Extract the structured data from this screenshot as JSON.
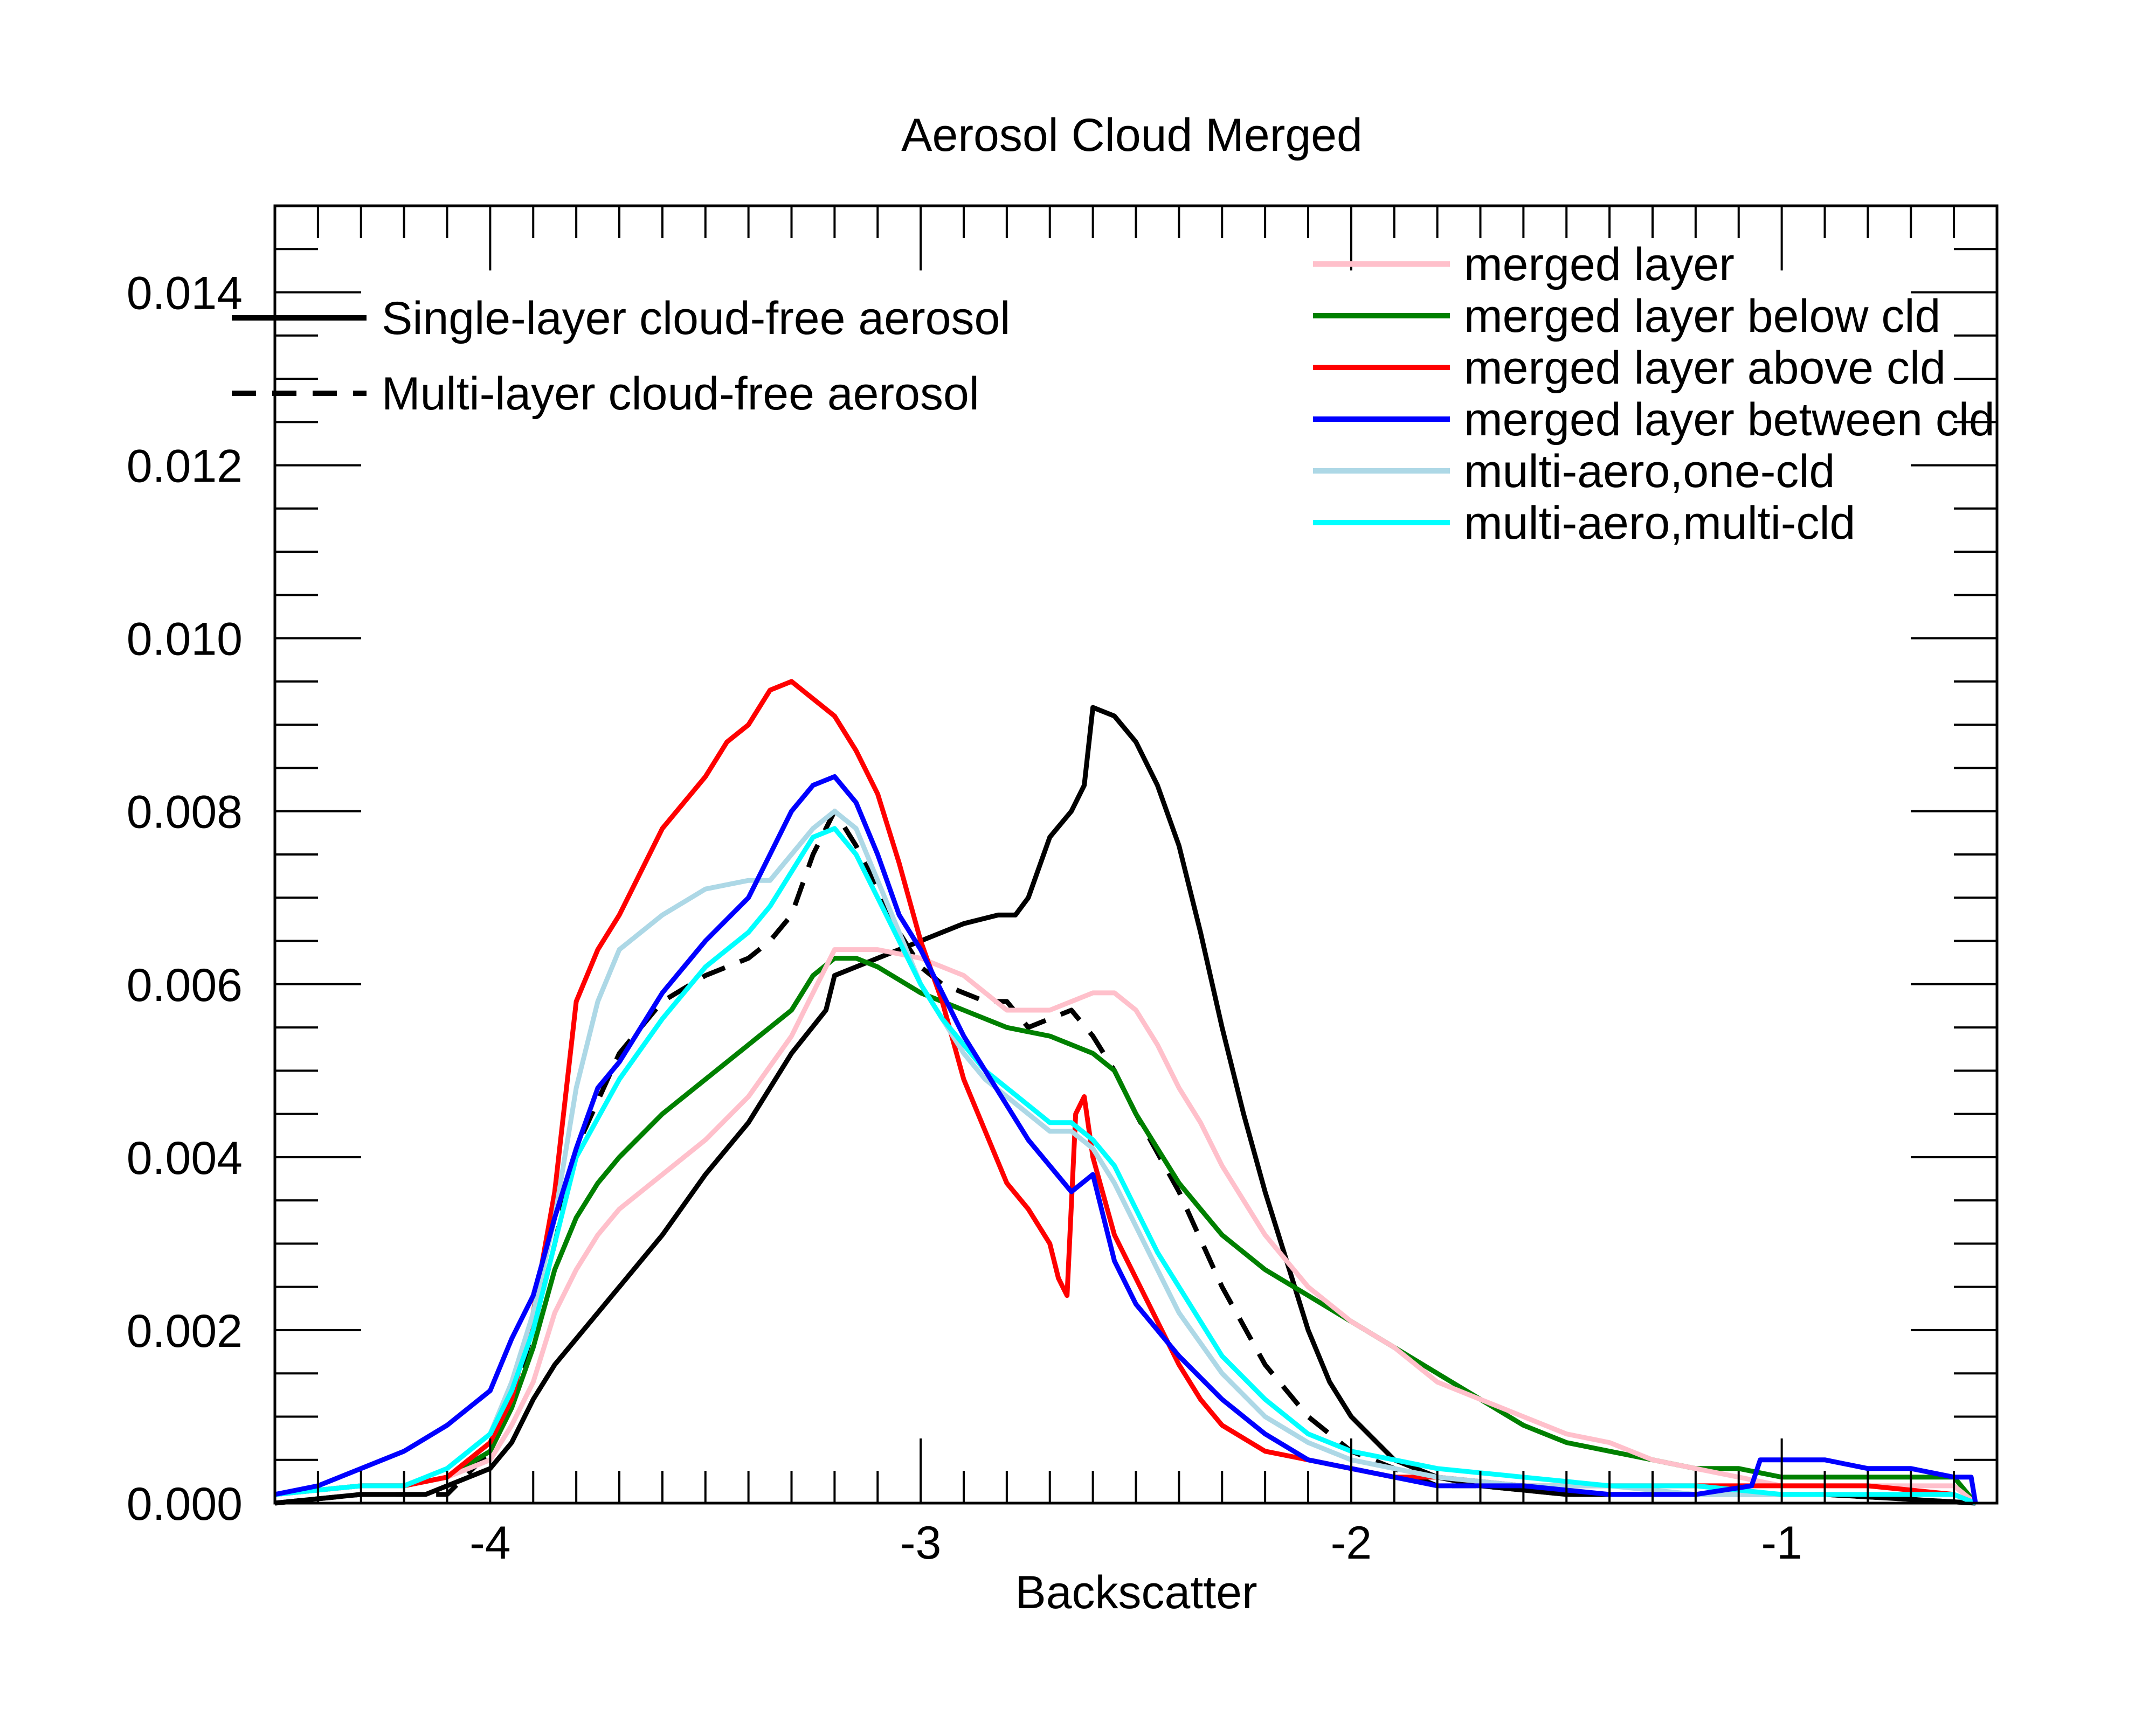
{
  "chart_data": {
    "type": "line",
    "title": "Aerosol Cloud Merged",
    "xlabel": "Backscatter",
    "ylabel": "",
    "xlim": [
      -4.5,
      -0.5
    ],
    "ylim": [
      0,
      0.015
    ],
    "xticks": [
      -4,
      -3,
      -2,
      -1
    ],
    "xtick_labels": [
      "-4",
      "-3",
      "-2",
      "-1"
    ],
    "yticks": [
      0,
      0.002,
      0.004,
      0.006,
      0.008,
      0.01,
      0.012,
      0.014
    ],
    "ytick_labels": [
      "0.000",
      "0.002",
      "0.004",
      "0.006",
      "0.008",
      "0.010",
      "0.012",
      "0.014"
    ],
    "grid": false,
    "legend_left": [
      {
        "name": "Single-layer cloud-free aerosol",
        "style": "solid",
        "color": "#000000"
      },
      {
        "name": "Multi-layer cloud-free aerosol",
        "style": "dashed",
        "color": "#000000"
      }
    ],
    "legend_right": [
      {
        "name": "merged layer",
        "color": "#ffc0cb"
      },
      {
        "name": "merged layer below cld",
        "color": "#008000"
      },
      {
        "name": "merged layer above cld",
        "color": "#ff0000"
      },
      {
        "name": "merged layer between cld",
        "color": "#0000ff"
      },
      {
        "name": "multi-aero,one-cld",
        "color": "#add8e6"
      },
      {
        "name": "multi-aero,multi-cld",
        "color": "#00ffff"
      }
    ],
    "series": [
      {
        "name": "Single-layer cloud-free aerosol",
        "color": "#000000",
        "style": "solid",
        "x": [
          -4.5,
          -4.3,
          -4.15,
          -4.0,
          -3.95,
          -3.9,
          -3.85,
          -3.8,
          -3.7,
          -3.6,
          -3.5,
          -3.4,
          -3.3,
          -3.22,
          -3.2,
          -3.1,
          -3.0,
          -2.9,
          -2.82,
          -2.78,
          -2.75,
          -2.7,
          -2.65,
          -2.62,
          -2.6,
          -2.55,
          -2.5,
          -2.45,
          -2.4,
          -2.35,
          -2.3,
          -2.25,
          -2.2,
          -2.15,
          -2.1,
          -2.05,
          -2.0,
          -1.9,
          -1.8,
          -1.7,
          -1.5,
          -1.2,
          -0.9,
          -0.55
        ],
        "y": [
          0,
          0.0001,
          0.0001,
          0.0004,
          0.0007,
          0.0012,
          0.0016,
          0.0019,
          0.0025,
          0.0031,
          0.0038,
          0.0044,
          0.0052,
          0.0057,
          0.0061,
          0.0063,
          0.0065,
          0.0067,
          0.0068,
          0.0068,
          0.007,
          0.0077,
          0.008,
          0.0083,
          0.0092,
          0.0091,
          0.0088,
          0.0083,
          0.0076,
          0.0066,
          0.0055,
          0.0045,
          0.0036,
          0.0028,
          0.002,
          0.0014,
          0.001,
          0.0005,
          0.0003,
          0.0002,
          0.0001,
          0.0001,
          0.0001,
          0
        ]
      },
      {
        "name": "Multi-layer cloud-free aerosol",
        "color": "#000000",
        "style": "dashed",
        "x": [
          -4.5,
          -4.3,
          -4.1,
          -4.0,
          -3.95,
          -3.9,
          -3.85,
          -3.8,
          -3.7,
          -3.6,
          -3.5,
          -3.4,
          -3.35,
          -3.3,
          -3.25,
          -3.2,
          -3.15,
          -3.1,
          -3.05,
          -3.0,
          -2.95,
          -2.9,
          -2.85,
          -2.8,
          -2.75,
          -2.7,
          -2.65,
          -2.6,
          -2.55,
          -2.5,
          -2.4,
          -2.3,
          -2.2,
          -2.1,
          -2.0,
          -1.9,
          -1.8,
          -1.7,
          -1.5,
          -1.2,
          -0.9,
          -0.55
        ],
        "y": [
          0,
          0.0001,
          0.0001,
          0.0006,
          0.0012,
          0.002,
          0.003,
          0.0041,
          0.0052,
          0.0058,
          0.0061,
          0.0063,
          0.0065,
          0.0068,
          0.0075,
          0.008,
          0.0076,
          0.0071,
          0.0066,
          0.0062,
          0.006,
          0.0059,
          0.0058,
          0.0058,
          0.0055,
          0.0056,
          0.0057,
          0.0054,
          0.005,
          0.0045,
          0.0036,
          0.0025,
          0.0016,
          0.001,
          0.0006,
          0.0004,
          0.0002,
          0.0002,
          0.0001,
          0.0001,
          0.0001,
          0
        ]
      },
      {
        "name": "merged layer",
        "color": "#ffc0cb",
        "style": "solid",
        "x": [
          -4.5,
          -4.3,
          -4.2,
          -4.1,
          -4.0,
          -3.95,
          -3.9,
          -3.85,
          -3.8,
          -3.75,
          -3.7,
          -3.6,
          -3.5,
          -3.4,
          -3.3,
          -3.25,
          -3.2,
          -3.15,
          -3.1,
          -3.0,
          -2.9,
          -2.8,
          -2.7,
          -2.6,
          -2.55,
          -2.5,
          -2.45,
          -2.4,
          -2.35,
          -2.3,
          -2.2,
          -2.1,
          -2.0,
          -1.9,
          -1.8,
          -1.7,
          -1.6,
          -1.5,
          -1.4,
          -1.3,
          -1.2,
          -1.1,
          -1.0,
          -0.9,
          -0.8,
          -0.7,
          -0.6,
          -0.55
        ],
        "y": [
          0.0001,
          0.0002,
          0.0002,
          0.0003,
          0.0005,
          0.0009,
          0.0014,
          0.0022,
          0.0027,
          0.0031,
          0.0034,
          0.0038,
          0.0042,
          0.0047,
          0.0054,
          0.0059,
          0.0064,
          0.0064,
          0.0064,
          0.0063,
          0.0061,
          0.0057,
          0.0057,
          0.0059,
          0.0059,
          0.0057,
          0.0053,
          0.0048,
          0.0044,
          0.0039,
          0.0031,
          0.0025,
          0.0021,
          0.0018,
          0.0014,
          0.0012,
          0.001,
          0.0008,
          0.0007,
          0.0005,
          0.0004,
          0.0003,
          0.0002,
          0.0002,
          0.0002,
          0.0002,
          0.0002,
          0
        ]
      },
      {
        "name": "merged layer below cld",
        "color": "#008000",
        "style": "solid",
        "x": [
          -4.5,
          -4.3,
          -4.2,
          -4.1,
          -4.0,
          -3.95,
          -3.9,
          -3.85,
          -3.8,
          -3.75,
          -3.7,
          -3.6,
          -3.5,
          -3.4,
          -3.3,
          -3.25,
          -3.2,
          -3.15,
          -3.1,
          -3.0,
          -2.9,
          -2.8,
          -2.7,
          -2.6,
          -2.55,
          -2.5,
          -2.45,
          -2.4,
          -2.35,
          -2.3,
          -2.2,
          -2.1,
          -2.0,
          -1.9,
          -1.8,
          -1.7,
          -1.6,
          -1.5,
          -1.4,
          -1.3,
          -1.2,
          -1.1,
          -1.0,
          -0.9,
          -0.8,
          -0.7,
          -0.6,
          -0.55
        ],
        "y": [
          0.0001,
          0.0002,
          0.0002,
          0.0003,
          0.0006,
          0.0011,
          0.0018,
          0.0027,
          0.0033,
          0.0037,
          0.004,
          0.0045,
          0.0049,
          0.0053,
          0.0057,
          0.0061,
          0.0063,
          0.0063,
          0.0062,
          0.0059,
          0.0057,
          0.0055,
          0.0054,
          0.0052,
          0.005,
          0.0045,
          0.0041,
          0.0037,
          0.0034,
          0.0031,
          0.0027,
          0.0024,
          0.0021,
          0.0018,
          0.0015,
          0.0012,
          0.0009,
          0.0007,
          0.0006,
          0.0005,
          0.0004,
          0.0004,
          0.0003,
          0.0003,
          0.0003,
          0.0003,
          0.0003,
          0
        ]
      },
      {
        "name": "merged layer above cld",
        "color": "#ff0000",
        "style": "solid",
        "x": [
          -4.5,
          -4.3,
          -4.2,
          -4.1,
          -4.0,
          -3.95,
          -3.9,
          -3.85,
          -3.8,
          -3.75,
          -3.7,
          -3.6,
          -3.5,
          -3.45,
          -3.4,
          -3.35,
          -3.3,
          -3.25,
          -3.2,
          -3.15,
          -3.1,
          -3.05,
          -3.0,
          -2.95,
          -2.9,
          -2.85,
          -2.8,
          -2.75,
          -2.7,
          -2.68,
          -2.66,
          -2.64,
          -2.62,
          -2.6,
          -2.55,
          -2.5,
          -2.45,
          -2.4,
          -2.35,
          -2.3,
          -2.2,
          -2.1,
          -2.0,
          -1.9,
          -1.8,
          -1.6,
          -1.4,
          -1.2,
          -1.0,
          -0.8,
          -0.6,
          -0.55
        ],
        "y": [
          0.0001,
          0.0002,
          0.0002,
          0.0003,
          0.0007,
          0.0012,
          0.0022,
          0.0036,
          0.0058,
          0.0064,
          0.0068,
          0.0078,
          0.0084,
          0.0088,
          0.009,
          0.0094,
          0.0095,
          0.0093,
          0.0091,
          0.0087,
          0.0082,
          0.0074,
          0.0065,
          0.0058,
          0.0049,
          0.0043,
          0.0037,
          0.0034,
          0.003,
          0.0026,
          0.0024,
          0.0045,
          0.0047,
          0.004,
          0.0031,
          0.0026,
          0.0021,
          0.0016,
          0.0012,
          0.0009,
          0.0006,
          0.0005,
          0.0004,
          0.0003,
          0.0003,
          0.0002,
          0.0002,
          0.0002,
          0.0002,
          0.0002,
          0.0001,
          0
        ]
      },
      {
        "name": "merged layer between cld",
        "color": "#0000ff",
        "style": "solid",
        "x": [
          -4.5,
          -4.4,
          -4.3,
          -4.2,
          -4.1,
          -4.0,
          -3.95,
          -3.9,
          -3.85,
          -3.8,
          -3.75,
          -3.7,
          -3.6,
          -3.5,
          -3.4,
          -3.35,
          -3.3,
          -3.25,
          -3.2,
          -3.15,
          -3.1,
          -3.05,
          -3.0,
          -2.95,
          -2.9,
          -2.85,
          -2.8,
          -2.75,
          -2.7,
          -2.65,
          -2.6,
          -2.55,
          -2.5,
          -2.45,
          -2.4,
          -2.3,
          -2.2,
          -2.1,
          -2.0,
          -1.9,
          -1.8,
          -1.6,
          -1.4,
          -1.2,
          -1.07,
          -1.05,
          -1.0,
          -0.9,
          -0.8,
          -0.7,
          -0.6,
          -0.56,
          -0.55
        ],
        "y": [
          0.0001,
          0.0002,
          0.0004,
          0.0006,
          0.0009,
          0.0013,
          0.0019,
          0.0024,
          0.0033,
          0.0041,
          0.0048,
          0.0051,
          0.0059,
          0.0065,
          0.007,
          0.0075,
          0.008,
          0.0083,
          0.0084,
          0.0081,
          0.0075,
          0.0068,
          0.0064,
          0.0059,
          0.0054,
          0.005,
          0.0046,
          0.0042,
          0.0039,
          0.0036,
          0.0038,
          0.0028,
          0.0023,
          0.002,
          0.0017,
          0.0012,
          0.0008,
          0.0005,
          0.0004,
          0.0003,
          0.0002,
          0.0002,
          0.0001,
          0.0001,
          0.0002,
          0.0005,
          0.0005,
          0.0005,
          0.0004,
          0.0004,
          0.0003,
          0.0003,
          0
        ]
      },
      {
        "name": "multi-aero,one-cld",
        "color": "#add8e6",
        "style": "solid",
        "x": [
          -4.5,
          -4.3,
          -4.2,
          -4.1,
          -4.0,
          -3.95,
          -3.9,
          -3.85,
          -3.8,
          -3.75,
          -3.7,
          -3.6,
          -3.5,
          -3.4,
          -3.35,
          -3.3,
          -3.25,
          -3.2,
          -3.15,
          -3.1,
          -3.05,
          -3.0,
          -2.95,
          -2.9,
          -2.85,
          -2.8,
          -2.75,
          -2.7,
          -2.65,
          -2.6,
          -2.55,
          -2.5,
          -2.45,
          -2.4,
          -2.3,
          -2.2,
          -2.1,
          -2.0,
          -1.9,
          -1.8,
          -1.6,
          -1.4,
          -1.2,
          -1.0,
          -0.8,
          -0.6,
          -0.55
        ],
        "y": [
          0.0001,
          0.0002,
          0.0002,
          0.0004,
          0.0008,
          0.0014,
          0.0022,
          0.0033,
          0.0048,
          0.0058,
          0.0064,
          0.0068,
          0.0071,
          0.0072,
          0.0072,
          0.0075,
          0.0078,
          0.008,
          0.0078,
          0.0072,
          0.0066,
          0.006,
          0.0056,
          0.0052,
          0.0049,
          0.0047,
          0.0045,
          0.0043,
          0.0043,
          0.0041,
          0.0037,
          0.0032,
          0.0027,
          0.0022,
          0.0015,
          0.001,
          0.0007,
          0.0005,
          0.0004,
          0.0003,
          0.0002,
          0.0002,
          0.0001,
          0.0001,
          0.0001,
          0.0001,
          0
        ]
      },
      {
        "name": "multi-aero,multi-cld",
        "color": "#00ffff",
        "style": "solid",
        "x": [
          -4.5,
          -4.3,
          -4.2,
          -4.1,
          -4.0,
          -3.95,
          -3.9,
          -3.85,
          -3.8,
          -3.7,
          -3.6,
          -3.5,
          -3.4,
          -3.35,
          -3.3,
          -3.25,
          -3.2,
          -3.15,
          -3.1,
          -3.05,
          -3.0,
          -2.95,
          -2.9,
          -2.85,
          -2.8,
          -2.75,
          -2.7,
          -2.65,
          -2.6,
          -2.55,
          -2.5,
          -2.45,
          -2.4,
          -2.3,
          -2.2,
          -2.1,
          -2.0,
          -1.9,
          -1.8,
          -1.6,
          -1.4,
          -1.2,
          -1.0,
          -0.8,
          -0.6,
          -0.55
        ],
        "y": [
          0.0001,
          0.0002,
          0.0002,
          0.0004,
          0.0008,
          0.0013,
          0.002,
          0.003,
          0.004,
          0.0049,
          0.0056,
          0.0062,
          0.0066,
          0.0069,
          0.0073,
          0.0077,
          0.0078,
          0.0075,
          0.007,
          0.0065,
          0.006,
          0.0056,
          0.0053,
          0.005,
          0.0048,
          0.0046,
          0.0044,
          0.0044,
          0.0042,
          0.0039,
          0.0034,
          0.0029,
          0.0025,
          0.0017,
          0.0012,
          0.0008,
          0.0006,
          0.0005,
          0.0004,
          0.0003,
          0.0002,
          0.0002,
          0.0001,
          0.0001,
          0.0001,
          0
        ]
      }
    ]
  }
}
